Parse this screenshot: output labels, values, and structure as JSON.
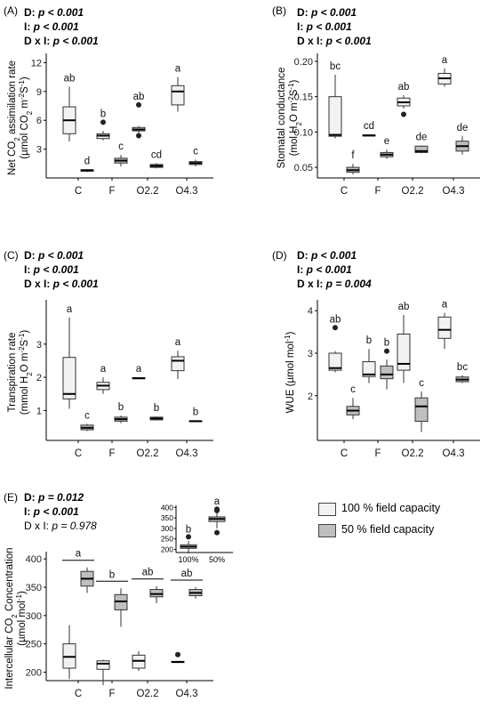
{
  "legend": [
    {
      "label": "100 % field capacity",
      "color": "#f2f2f2"
    },
    {
      "label": "50 % field capacity",
      "color": "#bfbfbf"
    }
  ],
  "chart_data": [
    {
      "id": "A",
      "panel_label": "(A)",
      "type": "boxplot",
      "stats": [
        {
          "factor": "D: ",
          "value": "p < 0.001"
        },
        {
          "factor": "I: ",
          "value": "p < 0.001"
        },
        {
          "factor": "D x I: ",
          "value": "p < 0.001"
        }
      ],
      "ylabel": [
        "Net CO",
        "2",
        " assimilation rate"
      ],
      "yunit": [
        "(µmol CO",
        "2",
        " m",
        "-2",
        "S",
        "-1",
        ")"
      ],
      "ylim": [
        0,
        12.5
      ],
      "yticks": [
        3,
        6,
        9,
        12
      ],
      "categories": [
        "C",
        "F",
        "O2.2",
        "O4.3"
      ],
      "series": [
        {
          "name": "100 % field capacity",
          "boxes": [
            {
              "min": 3.8,
              "q1": 4.6,
              "median": 6.0,
              "q3": 7.4,
              "max": 9.5,
              "outliers": [],
              "letter": "ab"
            },
            {
              "min": 3.9,
              "q1": 4.1,
              "median": 4.4,
              "q3": 4.6,
              "max": 4.9,
              "outliers": [
                5.8
              ],
              "letter": "b"
            },
            {
              "min": 4.7,
              "q1": 4.9,
              "median": 5.05,
              "q3": 5.25,
              "max": 5.4,
              "outliers": [
                4.4,
                7.6
              ],
              "letter": "ab"
            },
            {
              "min": 6.9,
              "q1": 7.6,
              "median": 9.0,
              "q3": 9.6,
              "max": 10.5,
              "outliers": [],
              "letter": "a"
            }
          ]
        },
        {
          "name": "50 % field capacity",
          "boxes": [
            {
              "min": 0.6,
              "q1": 0.7,
              "median": 0.8,
              "q3": 0.85,
              "max": 0.9,
              "outliers": [],
              "letter": "d"
            },
            {
              "min": 1.2,
              "q1": 1.55,
              "median": 1.8,
              "q3": 2.05,
              "max": 2.4,
              "outliers": [],
              "letter": "c"
            },
            {
              "min": 1.0,
              "q1": 1.1,
              "median": 1.25,
              "q3": 1.4,
              "max": 1.55,
              "outliers": [],
              "letter": "cd"
            },
            {
              "min": 1.2,
              "q1": 1.4,
              "median": 1.55,
              "q3": 1.7,
              "max": 1.9,
              "outliers": [],
              "letter": "c"
            }
          ]
        }
      ]
    },
    {
      "id": "B",
      "panel_label": "(B)",
      "type": "boxplot",
      "stats": [
        {
          "factor": "D: ",
          "value": "p < 0.001"
        },
        {
          "factor": "I: ",
          "value": "p < 0.001"
        },
        {
          "factor": "D x I: ",
          "value": "p < 0.001"
        }
      ],
      "ylabel": [
        "Stomatal conductance"
      ],
      "yunit": [
        "(mol H",
        "2",
        "O m",
        "-2",
        "S",
        "-1",
        ")"
      ],
      "ylim": [
        0.035,
        0.205
      ],
      "yticks": [
        0.05,
        0.1,
        0.15,
        0.2
      ],
      "tick_labels": [
        "0.05",
        "0.10",
        "0.15",
        "0.20"
      ],
      "categories": [
        "C",
        "F",
        "O2.2",
        "O4.3"
      ],
      "series": [
        {
          "name": "100 % field capacity",
          "boxes": [
            {
              "min": 0.091,
              "q1": 0.094,
              "median": 0.096,
              "q3": 0.15,
              "max": 0.181,
              "outliers": [],
              "letter": "bc"
            },
            {
              "min": 0.094,
              "q1": 0.0945,
              "median": 0.095,
              "q3": 0.096,
              "max": 0.097,
              "outliers": [],
              "letter": "cd"
            },
            {
              "min": 0.133,
              "q1": 0.137,
              "median": 0.142,
              "q3": 0.148,
              "max": 0.152,
              "outliers": [
                0.125
              ],
              "letter": "ab"
            },
            {
              "min": 0.164,
              "q1": 0.168,
              "median": 0.176,
              "q3": 0.183,
              "max": 0.19,
              "outliers": [],
              "letter": "a"
            }
          ]
        },
        {
          "name": "50 % field capacity",
          "boxes": [
            {
              "min": 0.04,
              "q1": 0.043,
              "median": 0.046,
              "q3": 0.05,
              "max": 0.055,
              "outliers": [],
              "letter": "f"
            },
            {
              "min": 0.062,
              "q1": 0.065,
              "median": 0.068,
              "q3": 0.071,
              "max": 0.075,
              "outliers": [],
              "letter": "e"
            },
            {
              "min": 0.07,
              "q1": 0.071,
              "median": 0.073,
              "q3": 0.08,
              "max": 0.081,
              "outliers": [],
              "letter": "de"
            },
            {
              "min": 0.068,
              "q1": 0.073,
              "median": 0.08,
              "q3": 0.087,
              "max": 0.094,
              "outliers": [],
              "letter": "de"
            }
          ]
        }
      ]
    },
    {
      "id": "C",
      "panel_label": "(C)",
      "type": "boxplot",
      "stats": [
        {
          "factor": "D: ",
          "value": "p < 0.001"
        },
        {
          "factor": "I: ",
          "value": "p < 0.001"
        },
        {
          "factor": "D x I: ",
          "value": "p < 0.001"
        }
      ],
      "ylabel": [
        "Transpiration rate"
      ],
      "yunit": [
        "(mmol H",
        "2",
        "O m",
        "-2",
        "S",
        "-1",
        ")"
      ],
      "ylim": [
        0.1,
        4.2
      ],
      "yticks": [
        1,
        2,
        3
      ],
      "categories": [
        "C",
        "F",
        "O2.2",
        "O4.3"
      ],
      "series": [
        {
          "name": "100 % field capacity",
          "boxes": [
            {
              "min": 1.05,
              "q1": 1.35,
              "median": 1.5,
              "q3": 2.6,
              "max": 3.8,
              "outliers": [],
              "letter": "a"
            },
            {
              "min": 1.5,
              "q1": 1.63,
              "median": 1.75,
              "q3": 1.85,
              "max": 2.0,
              "outliers": [],
              "letter": "a"
            },
            {
              "min": 1.95,
              "q1": 1.96,
              "median": 1.97,
              "q3": 1.99,
              "max": 2.0,
              "outliers": [],
              "letter": "a"
            },
            {
              "min": 1.95,
              "q1": 2.2,
              "median": 2.5,
              "q3": 2.62,
              "max": 2.8,
              "outliers": [],
              "letter": "a"
            }
          ]
        },
        {
          "name": "50 % field capacity",
          "boxes": [
            {
              "min": 0.38,
              "q1": 0.42,
              "median": 0.48,
              "q3": 0.56,
              "max": 0.6,
              "outliers": [],
              "letter": "c"
            },
            {
              "min": 0.62,
              "q1": 0.68,
              "median": 0.74,
              "q3": 0.8,
              "max": 0.85,
              "outliers": [],
              "letter": "b"
            },
            {
              "min": 0.7,
              "q1": 0.72,
              "median": 0.76,
              "q3": 0.8,
              "max": 0.82,
              "outliers": [],
              "letter": "b"
            },
            {
              "min": 0.66,
              "q1": 0.67,
              "median": 0.68,
              "q3": 0.69,
              "max": 0.7,
              "outliers": [],
              "letter": "b"
            }
          ]
        }
      ]
    },
    {
      "id": "D",
      "panel_label": "(D)",
      "type": "boxplot",
      "stats": [
        {
          "factor": "D: ",
          "value": "p < 0.001"
        },
        {
          "factor": "I: ",
          "value": "p < 0.001"
        },
        {
          "factor": "D x I: ",
          "value": "p = 0.004"
        }
      ],
      "ylabel": [
        "WUE (µmol mol",
        "-1",
        ")"
      ],
      "yunit": [],
      "ylim": [
        0.95,
        4.15
      ],
      "yticks": [
        2,
        3,
        4
      ],
      "categories": [
        "C",
        "F",
        "O2.2",
        "O4.3"
      ],
      "series": [
        {
          "name": "100 % field capacity",
          "boxes": [
            {
              "min": 2.55,
              "q1": 2.6,
              "median": 2.65,
              "q3": 3.0,
              "max": 3.05,
              "outliers": [
                3.6
              ],
              "letter": "ab"
            },
            {
              "min": 2.3,
              "q1": 2.45,
              "median": 2.5,
              "q3": 2.8,
              "max": 3.1,
              "outliers": [],
              "letter": "b"
            },
            {
              "min": 2.3,
              "q1": 2.6,
              "median": 2.75,
              "q3": 3.45,
              "max": 3.9,
              "outliers": [],
              "letter": "ab"
            },
            {
              "min": 3.1,
              "q1": 3.35,
              "median": 3.55,
              "q3": 3.85,
              "max": 3.95,
              "outliers": [],
              "letter": "a"
            }
          ]
        },
        {
          "name": "50 % field capacity",
          "boxes": [
            {
              "min": 1.45,
              "q1": 1.55,
              "median": 1.65,
              "q3": 1.75,
              "max": 1.95,
              "outliers": [],
              "letter": "c"
            },
            {
              "min": 2.15,
              "q1": 2.4,
              "median": 2.5,
              "q3": 2.7,
              "max": 2.85,
              "outliers": [
                3.05
              ],
              "letter": "b"
            },
            {
              "min": 1.15,
              "q1": 1.4,
              "median": 1.75,
              "q3": 1.95,
              "max": 2.1,
              "outliers": [],
              "letter": "c"
            },
            {
              "min": 2.3,
              "q1": 2.33,
              "median": 2.38,
              "q3": 2.44,
              "max": 2.48,
              "outliers": [],
              "letter": "bc"
            }
          ]
        }
      ]
    },
    {
      "id": "E",
      "panel_label": "(E)",
      "type": "boxplot",
      "stats": [
        {
          "factor": "D: ",
          "value": "p = 0.012"
        },
        {
          "factor": "I: ",
          "value": "p < 0.001"
        },
        {
          "factor": "D x I: ",
          "value": "p = 0.978",
          "plain": true
        }
      ],
      "ylabel": [
        "Intercellular CO",
        "2",
        " Concentration"
      ],
      "yunit": [
        "(µmol mol",
        "-1",
        ")"
      ],
      "ylim": [
        185,
        405
      ],
      "yticks": [
        200,
        250,
        300,
        350,
        400
      ],
      "categories": [
        "C",
        "F",
        "O2.2",
        "O4.3"
      ],
      "pair_letters": [
        "a",
        "b",
        "ab",
        "ab"
      ],
      "series": [
        {
          "name": "100 % field capacity",
          "boxes": [
            {
              "min": 188,
              "q1": 207,
              "median": 227,
              "q3": 250,
              "max": 283,
              "outliers": []
            },
            {
              "min": 177,
              "q1": 205,
              "median": 215,
              "q3": 220,
              "max": 222,
              "outliers": []
            },
            {
              "min": 202,
              "q1": 207,
              "median": 220,
              "q3": 230,
              "max": 237,
              "outliers": []
            },
            {
              "min": 216,
              "q1": 217,
              "median": 218,
              "q3": 219,
              "max": 220,
              "outliers": [
                231
              ]
            }
          ]
        },
        {
          "name": "50 % field capacity",
          "boxes": [
            {
              "min": 340,
              "q1": 352,
              "median": 365,
              "q3": 378,
              "max": 385,
              "outliers": []
            },
            {
              "min": 280,
              "q1": 310,
              "median": 325,
              "q3": 337,
              "max": 348,
              "outliers": []
            },
            {
              "min": 322,
              "q1": 333,
              "median": 338,
              "q3": 346,
              "max": 352,
              "outliers": []
            },
            {
              "min": 330,
              "q1": 335,
              "median": 340,
              "q3": 346,
              "max": 350,
              "outliers": []
            }
          ]
        }
      ],
      "inset": {
        "ylim": [
          185,
          410
        ],
        "yticks": [
          200,
          250,
          300,
          350,
          400
        ],
        "categories": [
          "100%",
          "50%"
        ],
        "boxes": [
          {
            "min": 180,
            "q1": 205,
            "median": 213,
            "q3": 222,
            "max": 240,
            "outliers": [
              260
            ],
            "letter": "b",
            "fill": "#f2f2f2"
          },
          {
            "min": 300,
            "q1": 333,
            "median": 345,
            "q3": 355,
            "max": 378,
            "outliers": [
              280,
              385,
              392
            ],
            "letter": "a",
            "fill": "#bfbfbf"
          }
        ]
      }
    }
  ]
}
